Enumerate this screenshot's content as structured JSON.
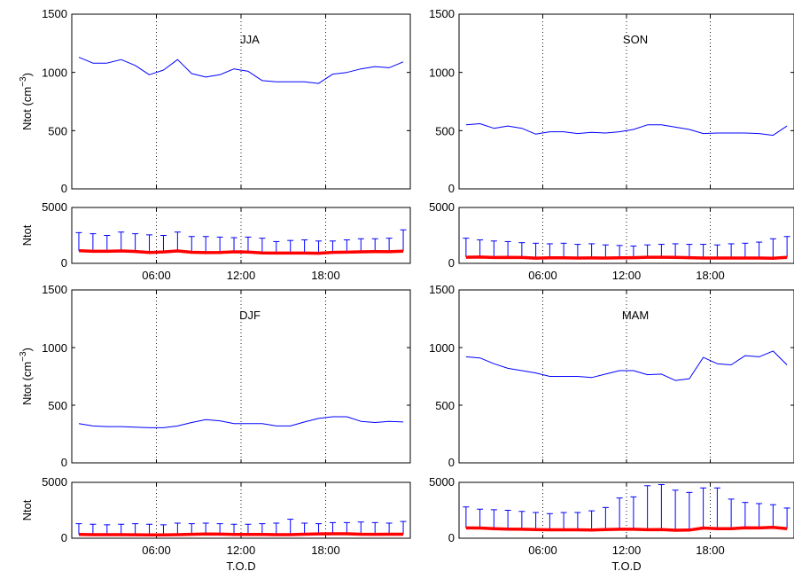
{
  "chart_data": [
    {
      "type": "line",
      "panel": "top-left",
      "annotation": "JJA",
      "ylabel_main": "Ntot (cm",
      "ylabel_sup": "−3",
      "ylabel_close": ")",
      "ylim": [
        0,
        1500
      ],
      "yticks": [
        "0",
        "500",
        "1000",
        "1500"
      ],
      "xlim": [
        0,
        24
      ],
      "x": [
        0,
        1,
        2,
        3,
        4,
        5,
        6,
        7,
        8,
        9,
        10,
        11,
        12,
        13,
        14,
        15,
        16,
        17,
        18,
        19,
        20,
        21,
        22,
        23
      ],
      "values": [
        1130,
        1080,
        1080,
        1110,
        1060,
        980,
        1020,
        1110,
        990,
        960,
        980,
        1030,
        1010,
        930,
        920,
        920,
        920,
        905,
        985,
        1000,
        1030,
        1050,
        1040,
        1090
      ],
      "series_color": "#0000ff"
    },
    {
      "type": "line",
      "panel": "top-right",
      "annotation": "SON",
      "ylim": [
        0,
        1500
      ],
      "yticks": [
        "0",
        "500",
        "1000",
        "1500"
      ],
      "xlim": [
        0,
        24
      ],
      "x": [
        0,
        1,
        2,
        3,
        4,
        5,
        6,
        7,
        8,
        9,
        10,
        11,
        12,
        13,
        14,
        15,
        16,
        17,
        18,
        19,
        20,
        21,
        22,
        23
      ],
      "values": [
        550,
        560,
        520,
        540,
        520,
        470,
        490,
        490,
        475,
        485,
        480,
        490,
        510,
        550,
        550,
        530,
        510,
        475,
        480,
        480,
        480,
        475,
        460,
        540
      ],
      "series_color": "#0000ff"
    },
    {
      "type": "line",
      "panel": "upper-left-small",
      "ylabel": "Ntot",
      "ylim": [
        0,
        5000
      ],
      "yticks": [
        "0",
        "5000"
      ],
      "xlim": [
        0,
        24
      ],
      "xticks": [
        "06:00",
        "12:00",
        "18:00"
      ],
      "x": [
        0,
        1,
        2,
        3,
        4,
        5,
        6,
        7,
        8,
        9,
        10,
        11,
        12,
        13,
        14,
        15,
        16,
        17,
        18,
        19,
        20,
        21,
        22,
        23
      ],
      "values": [
        1130,
        1080,
        1080,
        1110,
        1060,
        980,
        1020,
        1110,
        990,
        960,
        980,
        1030,
        1010,
        930,
        920,
        920,
        920,
        905,
        985,
        1000,
        1030,
        1050,
        1040,
        1090
      ],
      "upper": [
        2750,
        2650,
        2500,
        2800,
        2650,
        2550,
        2500,
        2800,
        2400,
        2400,
        2350,
        2300,
        2350,
        2250,
        1950,
        2050,
        2100,
        2000,
        2000,
        2100,
        2200,
        2200,
        2250,
        3000
      ],
      "series_color": "#ff0000",
      "errorbar_color": "#0000ff"
    },
    {
      "type": "line",
      "panel": "upper-right-small",
      "ylim": [
        0,
        5000
      ],
      "yticks": [
        "0",
        "5000"
      ],
      "xlim": [
        0,
        24
      ],
      "xticks": [
        "06:00",
        "12:00",
        "18:00"
      ],
      "x": [
        0,
        1,
        2,
        3,
        4,
        5,
        6,
        7,
        8,
        9,
        10,
        11,
        12,
        13,
        14,
        15,
        16,
        17,
        18,
        19,
        20,
        21,
        22,
        23
      ],
      "values": [
        550,
        560,
        520,
        540,
        520,
        470,
        490,
        490,
        475,
        485,
        480,
        490,
        510,
        550,
        550,
        530,
        510,
        475,
        480,
        480,
        480,
        475,
        460,
        540
      ],
      "upper": [
        2250,
        2100,
        2000,
        1950,
        1850,
        1800,
        1750,
        1800,
        1700,
        1750,
        1650,
        1600,
        1550,
        1650,
        1700,
        1750,
        1700,
        1700,
        1650,
        1750,
        1800,
        1900,
        2200,
        2400
      ],
      "series_color": "#ff0000",
      "errorbar_color": "#0000ff"
    },
    {
      "type": "line",
      "panel": "bottom-left",
      "annotation": "DJF",
      "ylabel_main": "Ntot (cm",
      "ylabel_sup": "−3",
      "ylabel_close": ")",
      "ylim": [
        0,
        1500
      ],
      "yticks": [
        "0",
        "500",
        "1000",
        "1500"
      ],
      "xlim": [
        0,
        24
      ],
      "x": [
        0,
        1,
        2,
        3,
        4,
        5,
        6,
        7,
        8,
        9,
        10,
        11,
        12,
        13,
        14,
        15,
        16,
        17,
        18,
        19,
        20,
        21,
        22,
        23
      ],
      "values": [
        340,
        320,
        315,
        315,
        310,
        305,
        305,
        320,
        350,
        375,
        365,
        340,
        340,
        340,
        320,
        320,
        355,
        385,
        400,
        400,
        360,
        350,
        360,
        355
      ],
      "series_color": "#0000ff"
    },
    {
      "type": "line",
      "panel": "bottom-right",
      "annotation": "MAM",
      "ylim": [
        0,
        1500
      ],
      "yticks": [
        "0",
        "500",
        "1000",
        "1500"
      ],
      "xlim": [
        0,
        24
      ],
      "x": [
        0,
        1,
        2,
        3,
        4,
        5,
        6,
        7,
        8,
        9,
        10,
        11,
        12,
        13,
        14,
        15,
        16,
        17,
        18,
        19,
        20,
        21,
        22,
        23
      ],
      "values": [
        920,
        910,
        860,
        820,
        800,
        780,
        750,
        750,
        750,
        740,
        770,
        800,
        800,
        765,
        770,
        715,
        730,
        915,
        860,
        850,
        930,
        920,
        970,
        850
      ],
      "series_color": "#0000ff"
    },
    {
      "type": "line",
      "panel": "lower-left-small",
      "ylabel": "Ntot",
      "xlabel": "T.O.D",
      "ylim": [
        0,
        5000
      ],
      "yticks": [
        "0",
        "5000"
      ],
      "xlim": [
        0,
        24
      ],
      "xticks": [
        "06:00",
        "12:00",
        "18:00"
      ],
      "x": [
        0,
        1,
        2,
        3,
        4,
        5,
        6,
        7,
        8,
        9,
        10,
        11,
        12,
        13,
        14,
        15,
        16,
        17,
        18,
        19,
        20,
        21,
        22,
        23
      ],
      "values": [
        340,
        320,
        315,
        315,
        310,
        305,
        305,
        320,
        350,
        375,
        365,
        340,
        340,
        340,
        320,
        320,
        355,
        385,
        400,
        400,
        360,
        350,
        360,
        355
      ],
      "upper": [
        1300,
        1250,
        1200,
        1250,
        1300,
        1250,
        1200,
        1350,
        1300,
        1350,
        1300,
        1250,
        1250,
        1300,
        1350,
        1700,
        1350,
        1300,
        1400,
        1400,
        1450,
        1400,
        1350,
        1500
      ],
      "series_color": "#ff0000",
      "errorbar_color": "#0000ff"
    },
    {
      "type": "line",
      "panel": "lower-right-small",
      "xlabel": "T.O.D",
      "ylim": [
        0,
        5000
      ],
      "yticks": [
        "0",
        "5000"
      ],
      "xlim": [
        0,
        24
      ],
      "xticks": [
        "06:00",
        "12:00",
        "18:00"
      ],
      "x": [
        0,
        1,
        2,
        3,
        4,
        5,
        6,
        7,
        8,
        9,
        10,
        11,
        12,
        13,
        14,
        15,
        16,
        17,
        18,
        19,
        20,
        21,
        22,
        23
      ],
      "values": [
        920,
        910,
        860,
        820,
        800,
        780,
        750,
        750,
        750,
        740,
        770,
        800,
        800,
        765,
        770,
        715,
        730,
        915,
        860,
        850,
        930,
        920,
        970,
        850
      ],
      "upper": [
        2800,
        2600,
        2550,
        2500,
        2400,
        2300,
        2200,
        2300,
        2300,
        2450,
        2750,
        3600,
        3700,
        4700,
        4800,
        4300,
        4100,
        4500,
        4500,
        3500,
        3200,
        3100,
        3000,
        2700
      ],
      "series_color": "#ff0000",
      "errorbar_color": "#0000ff"
    }
  ]
}
